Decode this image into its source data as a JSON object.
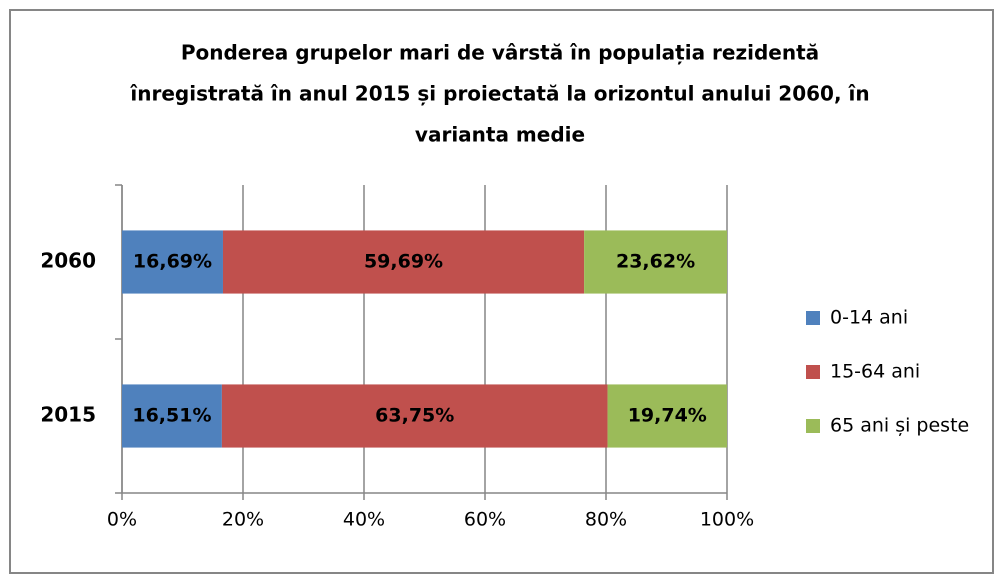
{
  "chart_data": {
    "type": "stacked_bar_horizontal",
    "title": [
      "Ponderea grupelor mari de vârstă în populația rezidentă",
      "înregistrată în anul 2015 și proiectată  la orizontul anului 2060, în",
      "varianta medie"
    ],
    "categories": [
      "2015",
      "2060"
    ],
    "series": [
      {
        "name": "0-14 ani",
        "color": "#4f81bd",
        "values": [
          16.51,
          16.69
        ],
        "value_labels": [
          "16,51%",
          "16,69%"
        ]
      },
      {
        "name": "15-64 ani",
        "color": "#c0504d",
        "values": [
          63.75,
          59.69
        ],
        "value_labels": [
          "63,75%",
          "59,69%"
        ]
      },
      {
        "name": "65 ani și peste",
        "color": "#9bbb59",
        "values": [
          19.74,
          23.62
        ],
        "value_labels": [
          "19,74%",
          "23,62%"
        ]
      }
    ],
    "xlim": [
      0,
      100
    ],
    "xticks": [
      {
        "value": 0,
        "label": "0%"
      },
      {
        "value": 20,
        "label": "20%"
      },
      {
        "value": 40,
        "label": "40%"
      },
      {
        "value": 60,
        "label": "60%"
      },
      {
        "value": 80,
        "label": "80%"
      },
      {
        "value": 100,
        "label": "100%"
      }
    ],
    "grid": true,
    "legend": "right"
  }
}
